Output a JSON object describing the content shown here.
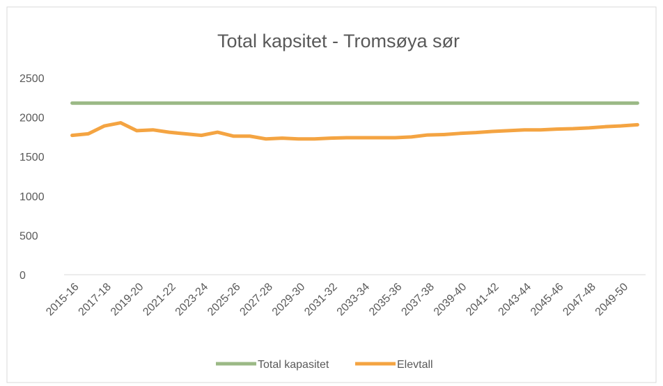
{
  "chart_data": {
    "type": "line",
    "title": "Total kapsitet - Tromsøya sør",
    "categories": [
      "2015-16",
      null,
      "2017-18",
      null,
      "2019-20",
      null,
      "2021-22",
      null,
      "2023-24",
      null,
      "2025-26",
      null,
      "2027-28",
      null,
      "2029-30",
      null,
      "2031-32",
      null,
      "2033-34",
      null,
      "2035-36",
      null,
      "2037-38",
      null,
      "2039-40",
      null,
      "2041-42",
      null,
      "2043-44",
      null,
      "2045-46",
      null,
      "2047-48",
      null,
      "2049-50",
      null
    ],
    "series": [
      {
        "name": "Total kapasitet",
        "color": "#9bb986",
        "values": [
          2180,
          2180,
          2180,
          2180,
          2180,
          2180,
          2180,
          2180,
          2180,
          2180,
          2180,
          2180,
          2180,
          2180,
          2180,
          2180,
          2180,
          2180,
          2180,
          2180,
          2180,
          2180,
          2180,
          2180,
          2180,
          2180,
          2180,
          2180,
          2180,
          2180,
          2180,
          2180,
          2180,
          2180,
          2180,
          2180
        ]
      },
      {
        "name": "Elevtall",
        "color": "#f4a442",
        "values": [
          1770,
          1790,
          1890,
          1930,
          1830,
          1840,
          1810,
          1790,
          1770,
          1810,
          1760,
          1760,
          1725,
          1735,
          1725,
          1725,
          1735,
          1740,
          1740,
          1740,
          1740,
          1750,
          1775,
          1780,
          1795,
          1805,
          1820,
          1830,
          1840,
          1840,
          1850,
          1855,
          1865,
          1880,
          1890,
          1905
        ]
      }
    ],
    "ylim": [
      0,
      2500
    ],
    "yticks": [
      0,
      500,
      1000,
      1500,
      2000,
      2500
    ],
    "grid": false,
    "legend": "bottom"
  }
}
